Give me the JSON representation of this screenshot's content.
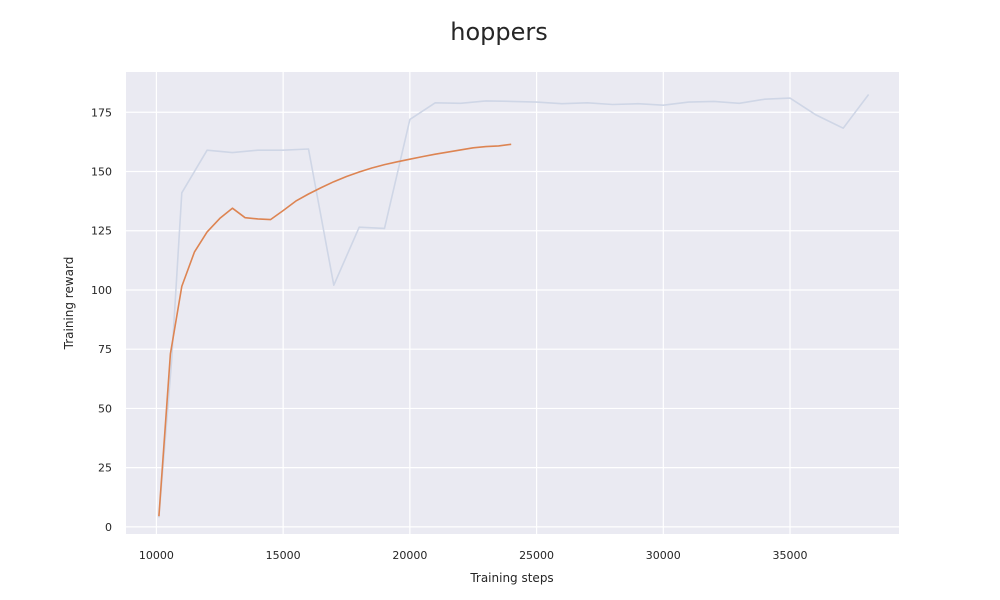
{
  "chart_data": {
    "type": "line",
    "title": "hoppers",
    "xlabel": "Training steps",
    "ylabel": "Training reward",
    "xlim": [
      8800,
      39300
    ],
    "ylim": [
      -3,
      192
    ],
    "xticks": [
      10000,
      15000,
      20000,
      25000,
      30000,
      35000
    ],
    "yticks": [
      0,
      25,
      50,
      75,
      100,
      125,
      150,
      175
    ],
    "grid": true,
    "legend": "none",
    "series": [
      {
        "color": "#cfd6e6",
        "points": [
          [
            10100,
            4
          ],
          [
            10600,
            70
          ],
          [
            11000,
            141
          ],
          [
            12000,
            159
          ],
          [
            13000,
            158
          ],
          [
            14000,
            159
          ],
          [
            15000,
            159
          ],
          [
            16000,
            159.5
          ],
          [
            17000,
            102
          ],
          [
            18000,
            126.5
          ],
          [
            19000,
            126
          ],
          [
            20000,
            172
          ],
          [
            21000,
            179
          ],
          [
            22000,
            178.8
          ],
          [
            23000,
            179.8
          ],
          [
            24000,
            179.6
          ],
          [
            25000,
            179.3
          ],
          [
            26000,
            178.6
          ],
          [
            27000,
            179
          ],
          [
            28000,
            178.3
          ],
          [
            29000,
            178.6
          ],
          [
            30000,
            178
          ],
          [
            31000,
            179.3
          ],
          [
            32000,
            179.6
          ],
          [
            33000,
            178.8
          ],
          [
            34000,
            180.5
          ],
          [
            35000,
            181
          ],
          [
            36000,
            174
          ],
          [
            37100,
            168.3
          ],
          [
            38100,
            182.5
          ]
        ]
      },
      {
        "color": "#dd8452",
        "points": [
          [
            10100,
            4.5
          ],
          [
            10550,
            73
          ],
          [
            11000,
            101.5
          ],
          [
            11500,
            116
          ],
          [
            12000,
            124.5
          ],
          [
            12500,
            130.2
          ],
          [
            13000,
            134.5
          ],
          [
            13500,
            130.5
          ],
          [
            14000,
            130
          ],
          [
            14500,
            129.7
          ],
          [
            15000,
            133.5
          ],
          [
            15500,
            137.5
          ],
          [
            16000,
            140.5
          ],
          [
            16500,
            143.2
          ],
          [
            17000,
            145.7
          ],
          [
            17500,
            147.9
          ],
          [
            18000,
            149.8
          ],
          [
            18500,
            151.5
          ],
          [
            19000,
            152.9
          ],
          [
            19500,
            154.1
          ],
          [
            20000,
            155.2
          ],
          [
            20500,
            156.3
          ],
          [
            21000,
            157.3
          ],
          [
            21500,
            158.2
          ],
          [
            22000,
            159.1
          ],
          [
            22500,
            160
          ],
          [
            23000,
            160.5
          ],
          [
            23500,
            160.8
          ],
          [
            24000,
            161.5
          ]
        ]
      }
    ]
  }
}
